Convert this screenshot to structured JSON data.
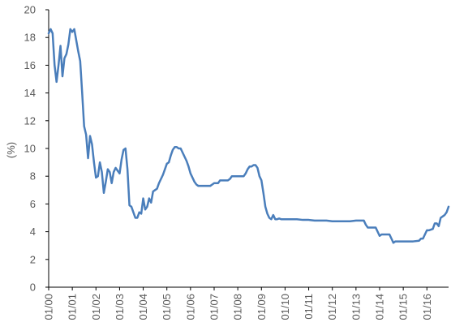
{
  "chart_data": {
    "type": "line",
    "title": "",
    "xlabel": "",
    "ylabel": "(%)",
    "ylim": [
      0,
      20
    ],
    "yticks": [
      0,
      2,
      4,
      6,
      8,
      10,
      12,
      14,
      16,
      18,
      20
    ],
    "xlim": [
      "2000-01",
      "2016-12"
    ],
    "xtick_labels": [
      "01/00",
      "01/01",
      "01/02",
      "01/03",
      "01/04",
      "01/05",
      "01/06",
      "01/07",
      "01/08",
      "01/09",
      "01/10",
      "01/11",
      "01/12",
      "01/13",
      "01/14",
      "01/15",
      "01/16"
    ],
    "grid": false,
    "legend": "none",
    "colors": {
      "line": "#4a7ebb",
      "axis": "#000000",
      "text": "#595959"
    },
    "series": [
      {
        "points": [
          [
            "2000-01",
            18.3
          ],
          [
            "2000-02",
            18.6
          ],
          [
            "2000-03",
            18.3
          ],
          [
            "2000-04",
            16.0
          ],
          [
            "2000-05",
            14.8
          ],
          [
            "2000-06",
            16.0
          ],
          [
            "2000-07",
            17.4
          ],
          [
            "2000-08",
            15.2
          ],
          [
            "2000-09",
            16.5
          ],
          [
            "2000-10",
            16.8
          ],
          [
            "2000-11",
            17.5
          ],
          [
            "2000-12",
            18.6
          ],
          [
            "2001-01",
            18.4
          ],
          [
            "2001-02",
            18.6
          ],
          [
            "2001-03",
            17.8
          ],
          [
            "2001-04",
            17.0
          ],
          [
            "2001-05",
            16.3
          ],
          [
            "2001-06",
            14.0
          ],
          [
            "2001-07",
            11.6
          ],
          [
            "2001-08",
            11.0
          ],
          [
            "2001-09",
            9.3
          ],
          [
            "2001-10",
            10.9
          ],
          [
            "2001-11",
            10.3
          ],
          [
            "2001-12",
            9.0
          ],
          [
            "2002-01",
            7.9
          ],
          [
            "2002-02",
            8.0
          ],
          [
            "2002-03",
            9.0
          ],
          [
            "2002-04",
            8.3
          ],
          [
            "2002-05",
            6.8
          ],
          [
            "2002-06",
            7.6
          ],
          [
            "2002-07",
            8.5
          ],
          [
            "2002-08",
            8.3
          ],
          [
            "2002-09",
            7.5
          ],
          [
            "2002-10",
            8.3
          ],
          [
            "2002-11",
            8.6
          ],
          [
            "2002-12",
            8.4
          ],
          [
            "2003-01",
            8.2
          ],
          [
            "2003-02",
            9.2
          ],
          [
            "2003-03",
            9.9
          ],
          [
            "2003-04",
            10.0
          ],
          [
            "2003-05",
            8.5
          ],
          [
            "2003-06",
            5.9
          ],
          [
            "2003-07",
            5.8
          ],
          [
            "2003-08",
            5.4
          ],
          [
            "2003-09",
            5.0
          ],
          [
            "2003-10",
            5.0
          ],
          [
            "2003-11",
            5.4
          ],
          [
            "2003-12",
            5.3
          ],
          [
            "2004-01",
            6.4
          ],
          [
            "2004-02",
            5.6
          ],
          [
            "2004-03",
            5.8
          ],
          [
            "2004-04",
            6.4
          ],
          [
            "2004-05",
            6.1
          ],
          [
            "2004-06",
            6.9
          ],
          [
            "2004-07",
            7.0
          ],
          [
            "2004-08",
            7.1
          ],
          [
            "2004-09",
            7.5
          ],
          [
            "2004-10",
            7.8
          ],
          [
            "2004-11",
            8.1
          ],
          [
            "2004-12",
            8.5
          ],
          [
            "2005-01",
            8.9
          ],
          [
            "2005-02",
            9.0
          ],
          [
            "2005-03",
            9.5
          ],
          [
            "2005-04",
            9.9
          ],
          [
            "2005-05",
            10.1
          ],
          [
            "2005-06",
            10.1
          ],
          [
            "2005-07",
            10.0
          ],
          [
            "2005-08",
            10.0
          ],
          [
            "2005-09",
            9.7
          ],
          [
            "2005-10",
            9.4
          ],
          [
            "2005-11",
            9.1
          ],
          [
            "2005-12",
            8.7
          ],
          [
            "2006-01",
            8.2
          ],
          [
            "2006-02",
            7.9
          ],
          [
            "2006-03",
            7.6
          ],
          [
            "2006-04",
            7.4
          ],
          [
            "2006-05",
            7.3
          ],
          [
            "2006-06",
            7.3
          ],
          [
            "2006-07",
            7.3
          ],
          [
            "2006-08",
            7.3
          ],
          [
            "2006-09",
            7.3
          ],
          [
            "2006-10",
            7.3
          ],
          [
            "2006-11",
            7.3
          ],
          [
            "2006-12",
            7.4
          ],
          [
            "2007-01",
            7.5
          ],
          [
            "2007-02",
            7.5
          ],
          [
            "2007-03",
            7.5
          ],
          [
            "2007-04",
            7.7
          ],
          [
            "2007-05",
            7.7
          ],
          [
            "2007-06",
            7.7
          ],
          [
            "2007-07",
            7.7
          ],
          [
            "2007-08",
            7.7
          ],
          [
            "2007-09",
            7.8
          ],
          [
            "2007-10",
            8.0
          ],
          [
            "2007-11",
            8.0
          ],
          [
            "2007-12",
            8.0
          ],
          [
            "2008-01",
            8.0
          ],
          [
            "2008-02",
            8.0
          ],
          [
            "2008-03",
            8.0
          ],
          [
            "2008-04",
            8.0
          ],
          [
            "2008-05",
            8.2
          ],
          [
            "2008-06",
            8.5
          ],
          [
            "2008-07",
            8.7
          ],
          [
            "2008-08",
            8.7
          ],
          [
            "2008-09",
            8.8
          ],
          [
            "2008-10",
            8.8
          ],
          [
            "2008-11",
            8.6
          ],
          [
            "2008-12",
            8.0
          ],
          [
            "2009-01",
            7.7
          ],
          [
            "2009-02",
            6.8
          ],
          [
            "2009-03",
            5.8
          ],
          [
            "2009-04",
            5.3
          ],
          [
            "2009-05",
            5.0
          ],
          [
            "2009-06",
            4.9
          ],
          [
            "2009-07",
            5.2
          ],
          [
            "2009-08",
            4.9
          ],
          [
            "2009-09",
            4.9
          ],
          [
            "2009-10",
            4.95
          ],
          [
            "2009-11",
            4.9
          ],
          [
            "2009-12",
            4.9
          ],
          [
            "2010-01",
            4.9
          ],
          [
            "2010-04",
            4.9
          ],
          [
            "2010-07",
            4.9
          ],
          [
            "2010-10",
            4.85
          ],
          [
            "2011-01",
            4.85
          ],
          [
            "2011-04",
            4.8
          ],
          [
            "2011-07",
            4.8
          ],
          [
            "2011-10",
            4.8
          ],
          [
            "2012-01",
            4.75
          ],
          [
            "2012-04",
            4.75
          ],
          [
            "2012-07",
            4.75
          ],
          [
            "2012-10",
            4.75
          ],
          [
            "2013-01",
            4.8
          ],
          [
            "2013-03",
            4.8
          ],
          [
            "2013-05",
            4.8
          ],
          [
            "2013-06",
            4.5
          ],
          [
            "2013-07",
            4.3
          ],
          [
            "2013-09",
            4.3
          ],
          [
            "2013-11",
            4.3
          ],
          [
            "2013-12",
            4.0
          ],
          [
            "2014-01",
            3.7
          ],
          [
            "2014-02",
            3.8
          ],
          [
            "2014-04",
            3.8
          ],
          [
            "2014-06",
            3.8
          ],
          [
            "2014-07",
            3.5
          ],
          [
            "2014-08",
            3.2
          ],
          [
            "2014-09",
            3.3
          ],
          [
            "2014-11",
            3.3
          ],
          [
            "2015-01",
            3.3
          ],
          [
            "2015-03",
            3.3
          ],
          [
            "2015-06",
            3.3
          ],
          [
            "2015-09",
            3.35
          ],
          [
            "2015-10",
            3.5
          ],
          [
            "2015-11",
            3.5
          ],
          [
            "2016-01",
            4.1
          ],
          [
            "2016-02",
            4.1
          ],
          [
            "2016-04",
            4.2
          ],
          [
            "2016-05",
            4.6
          ],
          [
            "2016-06",
            4.6
          ],
          [
            "2016-07",
            4.4
          ],
          [
            "2016-08",
            5.0
          ],
          [
            "2016-10",
            5.2
          ],
          [
            "2016-11",
            5.4
          ],
          [
            "2016-12",
            5.8
          ]
        ]
      }
    ]
  }
}
